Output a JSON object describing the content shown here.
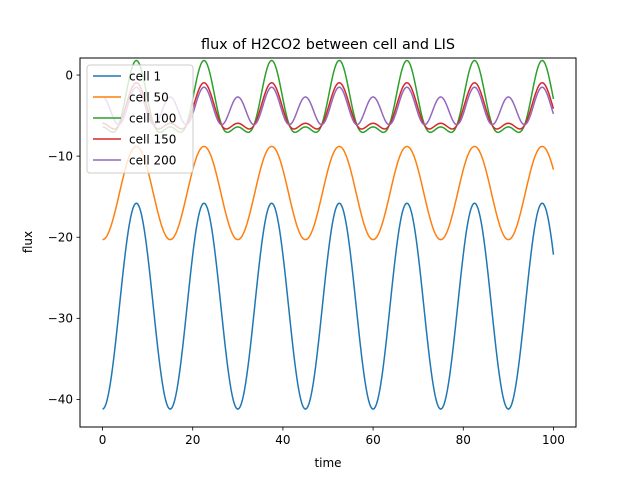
{
  "chart_data": {
    "type": "line",
    "title": "flux of H2CO2 between cell and LIS",
    "xlabel": "time",
    "ylabel": "flux",
    "xlim": [
      -5,
      105
    ],
    "ylim": [
      -43.4,
      2.1
    ],
    "xticks": [
      0,
      20,
      40,
      60,
      80,
      100
    ],
    "yticks": [
      0,
      -10,
      -20,
      -30,
      -40
    ],
    "xtick_labels": [
      "0",
      "20",
      "40",
      "60",
      "80",
      "100"
    ],
    "ytick_labels": [
      "0",
      "−10",
      "−20",
      "−30",
      "−40"
    ],
    "legend_position": "upper-left",
    "period": 15,
    "series": [
      {
        "name": "cell 1",
        "color": "#1f77b4",
        "mean": -28.5,
        "amplitude": 12.7,
        "peak_time": 22.5
      },
      {
        "name": "cell 50",
        "color": "#ff7f0e",
        "mean": -14.55,
        "amplitude": 5.75,
        "peak_time": 22.5
      },
      {
        "name": "cell 100",
        "color": "#2ca02c",
        "mean": -4.1,
        "amplitude": 4.1,
        "peak_time": 22.5,
        "second_harmonic": 1.8
      },
      {
        "name": "cell 150",
        "color": "#d62728",
        "mean": -4.75,
        "amplitude": 2.5,
        "peak_time": 22.5,
        "second_harmonic": 1.3
      },
      {
        "name": "cell 200",
        "color": "#9467bd",
        "mean": -4.1,
        "amplitude": 0.6,
        "peak_time": 22.5,
        "second_harmonic": 2.0
      }
    ]
  }
}
